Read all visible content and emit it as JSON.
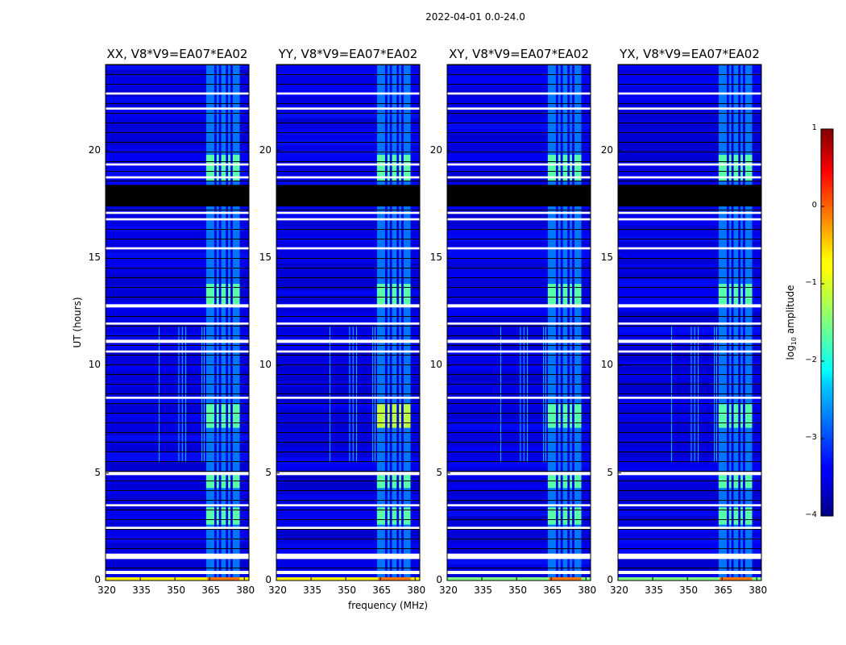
{
  "chart_data": {
    "type": "heatmap",
    "title": "2022-04-01 0.0-24.0",
    "xlabel": "frequency (MHz)",
    "ylabel": "UT (hours)",
    "xlim": [
      320,
      382
    ],
    "ylim": [
      0,
      24
    ],
    "x_ticks": [
      "320",
      "335",
      "350",
      "365",
      "380"
    ],
    "y_ticks": [
      "0",
      "5",
      "10",
      "15",
      "20"
    ],
    "panels": [
      {
        "title": "XX, V8*V9=EA07*EA02"
      },
      {
        "title": "YY, V8*V9=EA07*EA02"
      },
      {
        "title": "XY, V8*V9=EA07*EA02"
      },
      {
        "title": "YX, V8*V9=EA07*EA02"
      }
    ],
    "colorbar": {
      "label": "log10 amplitude",
      "label_base": "log",
      "label_sub": "10",
      "label_rest": " amplitude",
      "range": [
        -4,
        1
      ],
      "ticks": [
        "1",
        "0",
        "−1",
        "−2",
        "−3",
        "−4"
      ],
      "colormap": "jet"
    },
    "background_level": -3.5,
    "rfi_bands_mhz": [
      [
        363.5,
        367
      ],
      [
        368,
        369
      ],
      [
        370,
        372
      ],
      [
        373,
        374
      ],
      [
        375,
        378
      ]
    ],
    "bright_hours": [
      [
        2.6,
        3.4
      ],
      [
        4.3,
        4.9
      ],
      [
        7.1,
        8.2
      ],
      [
        12.8,
        13.8
      ],
      [
        18.6,
        19.8
      ]
    ],
    "flagged_black_hours": [
      [
        17.4,
        18.4
      ]
    ],
    "flagged_white_hours": [
      [
        0.3,
        0.45
      ],
      [
        1.0,
        1.25
      ],
      [
        2.4,
        2.5
      ],
      [
        3.45,
        3.55
      ],
      [
        4.9,
        5.05
      ],
      [
        8.45,
        8.55
      ],
      [
        10.6,
        10.7
      ],
      [
        11.05,
        11.2
      ],
      [
        11.9,
        12.0
      ],
      [
        12.7,
        12.85
      ],
      [
        15.4,
        15.5
      ],
      [
        16.75,
        16.85
      ],
      [
        17.05,
        17.15
      ],
      [
        18.7,
        18.8
      ],
      [
        19.3,
        19.4
      ],
      [
        22.6,
        22.7
      ],
      [
        21.9,
        22.0
      ]
    ]
  }
}
